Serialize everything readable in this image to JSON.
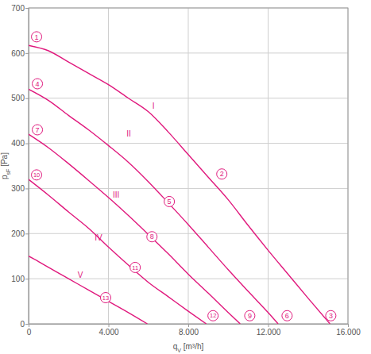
{
  "chart_data": {
    "type": "line",
    "xlabel": "qV [m³/h]",
    "ylabel": "psF [Pa]",
    "xlim": [
      0,
      16000
    ],
    "ylim": [
      0,
      700
    ],
    "xticks": [
      0,
      {
        "value": 4000,
        "label": "4.000"
      },
      {
        "value": 8000,
        "label": "8.000"
      },
      {
        "value": 12000,
        "label": "12.000"
      },
      {
        "value": 16000,
        "label": "16.000"
      }
    ],
    "yticks": [
      0,
      100,
      200,
      300,
      400,
      500,
      600,
      700
    ],
    "grid": true,
    "color": "#e0197d",
    "series": [
      {
        "name": "I",
        "label_x": 6250,
        "label_y": 483,
        "x": [
          0,
          1000,
          2000,
          3000,
          4000,
          5000,
          6000,
          7000,
          8000,
          9000,
          10000,
          11000,
          12000,
          13000,
          14000,
          15100
        ],
        "values": [
          617,
          605,
          580,
          555,
          530,
          500,
          470,
          425,
          375,
          325,
          275,
          218,
          163,
          110,
          57,
          0
        ]
      },
      {
        "name": "II",
        "label_x": 5020,
        "label_y": 422,
        "x": [
          0,
          1000,
          2000,
          3000,
          4000,
          5000,
          6000,
          7000,
          8000,
          9000,
          10000,
          11000,
          12000,
          12500
        ],
        "values": [
          520,
          495,
          462,
          430,
          395,
          358,
          315,
          268,
          220,
          170,
          120,
          72,
          25,
          0
        ]
      },
      {
        "name": "III",
        "label_x": 4380,
        "label_y": 285,
        "x": [
          0,
          1000,
          2000,
          3000,
          4000,
          5000,
          6000,
          7000,
          8000,
          9000,
          10000,
          10600
        ],
        "values": [
          420,
          390,
          355,
          318,
          280,
          240,
          198,
          155,
          110,
          68,
          25,
          0
        ]
      },
      {
        "name": "IV",
        "label_x": 3500,
        "label_y": 190,
        "x": [
          0,
          1000,
          2000,
          3000,
          4000,
          5000,
          6000,
          7000,
          8000,
          8900
        ],
        "values": [
          320,
          285,
          248,
          212,
          170,
          130,
          92,
          60,
          28,
          0
        ]
      },
      {
        "name": "V",
        "label_x": 2590,
        "label_y": 109,
        "x": [
          0,
          500,
          1000,
          2000,
          3000,
          4000,
          5000,
          5950
        ],
        "values": [
          150,
          138,
          125,
          100,
          75,
          50,
          25,
          0
        ]
      }
    ],
    "annotations": [
      {
        "text": "1",
        "x": 400,
        "y": 636
      },
      {
        "text": "2",
        "x": 9680,
        "y": 332
      },
      {
        "text": "3",
        "x": 15140,
        "y": 18
      },
      {
        "text": "4",
        "x": 440,
        "y": 532
      },
      {
        "text": "5",
        "x": 7050,
        "y": 271
      },
      {
        "text": "6",
        "x": 12950,
        "y": 18
      },
      {
        "text": "7",
        "x": 440,
        "y": 430
      },
      {
        "text": "8",
        "x": 6180,
        "y": 193
      },
      {
        "text": "9",
        "x": 11080,
        "y": 18
      },
      {
        "text": "10",
        "x": 400,
        "y": 330
      },
      {
        "text": "11",
        "x": 5340,
        "y": 125
      },
      {
        "text": "12",
        "x": 9240,
        "y": 18
      },
      {
        "text": "13",
        "x": 3860,
        "y": 58
      }
    ]
  }
}
